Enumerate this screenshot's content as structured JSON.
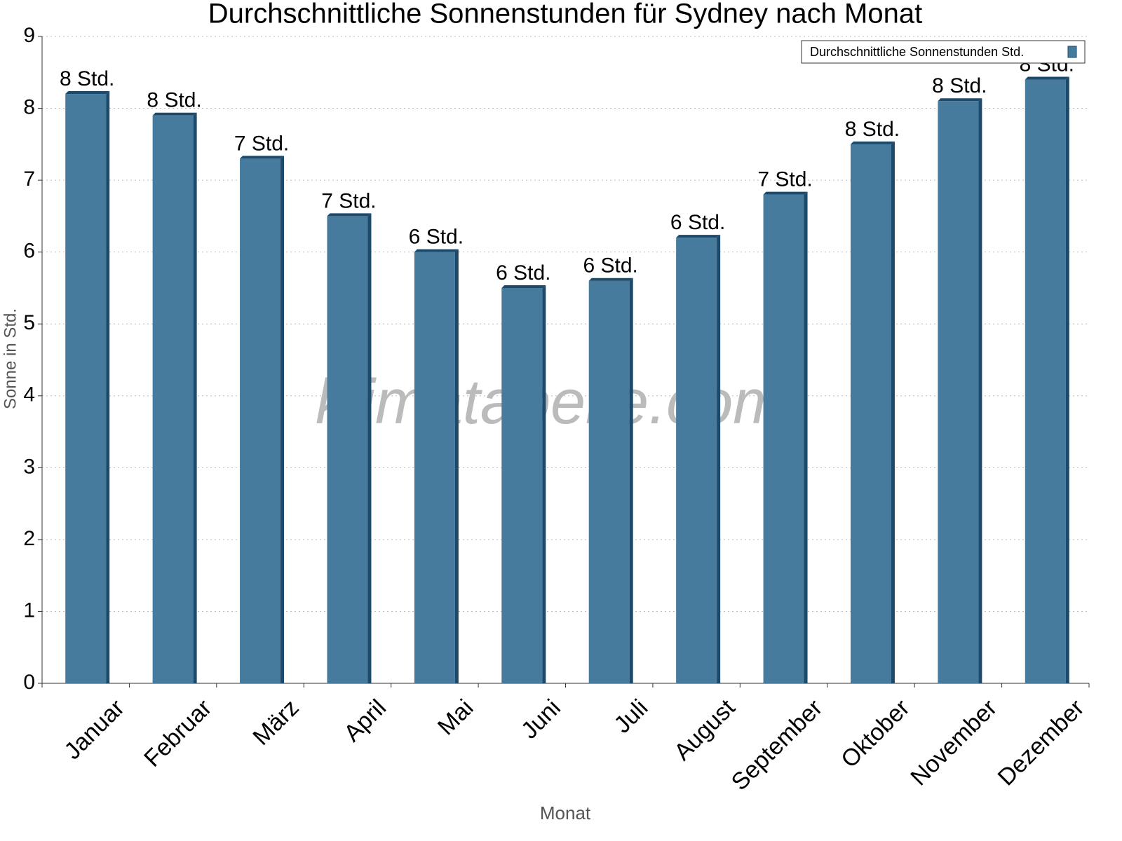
{
  "chart_data": {
    "type": "bar",
    "title": "Durchschnittliche Sonnenstunden für Sydney nach Monat",
    "x_label": "Monat",
    "y_label": "Sonne in Std.",
    "watermark": "klimatabelle.com",
    "categories": [
      "Januar",
      "Februar",
      "März",
      "April",
      "Mai",
      "Juni",
      "Juli",
      "August",
      "September",
      "Oktober",
      "November",
      "Dezember"
    ],
    "series": [
      {
        "name": "Durchschnittliche Sonnenstunden Std.",
        "color": "#467b9e",
        "values": [
          8.2,
          7.9,
          7.3,
          6.5,
          6.0,
          5.5,
          5.6,
          6.2,
          6.8,
          7.5,
          8.1,
          8.4
        ],
        "value_labels": [
          "8 Std.",
          "8 Std.",
          "7 Std.",
          "7 Std.",
          "6 Std.",
          "6 Std.",
          "6 Std.",
          "6 Std.",
          "7 Std.",
          "8 Std.",
          "8 Std.",
          "8 Std."
        ]
      }
    ],
    "ylim": [
      0,
      9
    ],
    "yticks": [
      0,
      1,
      2,
      3,
      4,
      5,
      6,
      7,
      8,
      9
    ],
    "grid": true,
    "legend": "top-right"
  }
}
